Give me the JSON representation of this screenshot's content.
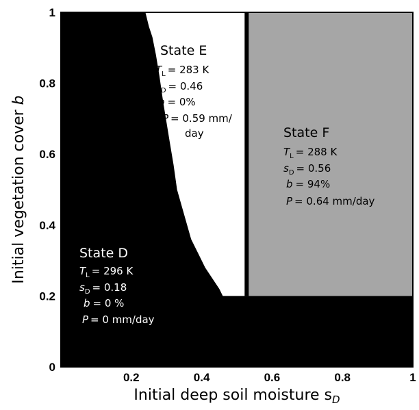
{
  "chart_data": {
    "type": "heatmap",
    "title": "",
    "xlabel": "Initial deep soil moisture s",
    "xlabel_sub": "D",
    "ylabel": "Initial vegetation cover ",
    "ylabel_var": "b",
    "xlim": [
      0.0,
      1.0
    ],
    "ylim": [
      0.0,
      1.0
    ],
    "x_ticks": [
      {
        "value": 0.2,
        "label": "0.2"
      },
      {
        "value": 0.4,
        "label": "0.4"
      },
      {
        "value": 0.6,
        "label": "0.6"
      },
      {
        "value": 0.8,
        "label": "0.8"
      },
      {
        "value": 1.0,
        "label": "1"
      }
    ],
    "y_ticks": [
      {
        "value": 0.0,
        "label": "0"
      },
      {
        "value": 0.2,
        "label": "0.2"
      },
      {
        "value": 0.4,
        "label": "0.4"
      },
      {
        "value": 0.6,
        "label": "0.6"
      },
      {
        "value": 0.8,
        "label": "0.8"
      },
      {
        "value": 1.0,
        "label": "1"
      }
    ],
    "grid": false,
    "regions": [
      {
        "state": "D",
        "color": "#000000",
        "boundary_x": [
          0.0,
          0.24,
          0.25,
          0.26,
          0.27,
          0.28,
          0.29,
          0.3,
          0.31,
          0.32,
          0.33,
          0.35,
          0.37,
          0.39,
          0.41,
          0.43,
          0.45,
          0.46,
          1.0,
          1.0,
          0.0
        ],
        "boundary_y": [
          1.0,
          1.0,
          0.96,
          0.93,
          0.88,
          0.82,
          0.75,
          0.69,
          0.63,
          0.57,
          0.5,
          0.43,
          0.36,
          0.32,
          0.28,
          0.25,
          0.22,
          0.2,
          0.2,
          0.0,
          0.0
        ]
      },
      {
        "state": "E",
        "color": "#ffffff",
        "x_range": [
          0.24,
          0.52
        ],
        "y_range": [
          0.2,
          1.0
        ]
      },
      {
        "state": "F",
        "color": "#a6a6a6",
        "x_range": [
          0.53,
          1.0
        ],
        "y_range": [
          0.2,
          1.0
        ]
      }
    ]
  },
  "states": {
    "e": {
      "title": "State E",
      "tl": "= 283 K",
      "sd": "= 0.46",
      "b": "= 0%",
      "p1": "= 0.59 mm/",
      "p2": "day"
    },
    "f": {
      "title": "State F",
      "tl": "= 288 K",
      "sd": "= 0.56",
      "b": "= 94%",
      "p1": "= 0.64 mm/day"
    },
    "d": {
      "title": "State D",
      "tl": "= 296 K",
      "sd": "= 0.18",
      "b": "= 0 %",
      "p1": "= 0 mm/day"
    }
  },
  "symbols": {
    "t": "T",
    "t_sub": "L",
    "s": "s",
    "s_sub": "D",
    "b": "b",
    "p": "P"
  }
}
